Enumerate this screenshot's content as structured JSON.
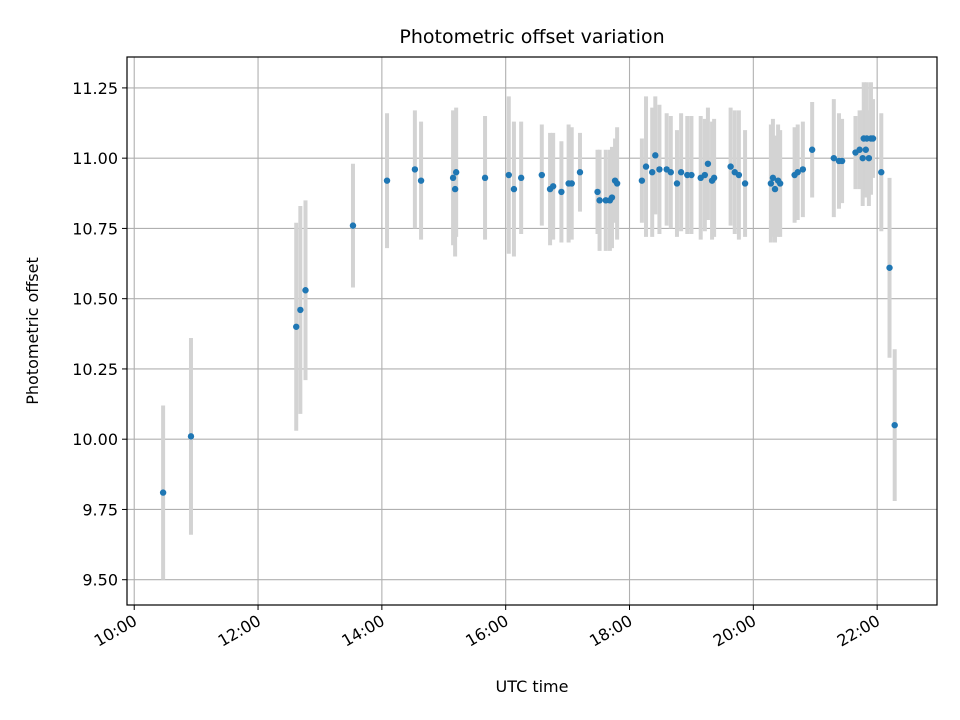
{
  "chart_data": {
    "type": "scatter",
    "title": "Photometric offset variation",
    "xlabel": "UTC time",
    "ylabel": "Photometric offset",
    "x_ticks": [
      "10:00",
      "12:00",
      "14:00",
      "16:00",
      "18:00",
      "20:00",
      "22:00"
    ],
    "y_ticks": [
      "9.50",
      "9.75",
      "10.00",
      "10.25",
      "10.50",
      "10.75",
      "11.00",
      "11.25"
    ],
    "xlim": [
      "09:53",
      "22:58"
    ],
    "ylim": [
      9.41,
      11.36
    ],
    "grid": true,
    "point_color": "#1f77b4",
    "errorbar_color": "#d3d3d3",
    "series": [
      {
        "x": [
          "10:28",
          "10:55",
          "12:37",
          "12:41",
          "12:46",
          "13:32",
          "14:05",
          "14:32",
          "14:38",
          "15:09",
          "15:11",
          "15:12",
          "15:40",
          "16:03",
          "16:08",
          "16:15",
          "16:35",
          "16:43",
          "16:46",
          "16:54",
          "17:01",
          "17:04",
          "17:12",
          "17:29",
          "17:31",
          "17:37",
          "17:41",
          "17:43",
          "17:46",
          "17:48",
          "18:12",
          "18:16",
          "18:22",
          "18:25",
          "18:29",
          "18:36",
          "18:40",
          "18:46",
          "18:50",
          "18:56",
          "19:00",
          "19:09",
          "19:13",
          "19:16",
          "19:20",
          "19:22",
          "19:38",
          "19:42",
          "19:46",
          "19:52",
          "20:17",
          "20:19",
          "20:21",
          "20:24",
          "20:26",
          "20:40",
          "20:43",
          "20:48",
          "20:57",
          "21:18",
          "21:23",
          "21:26",
          "21:39",
          "21:43",
          "21:46",
          "21:47",
          "21:49",
          "21:50",
          "21:52",
          "21:54",
          "21:56",
          "22:04",
          "22:12",
          "22:17"
        ],
        "y": [
          9.81,
          10.01,
          10.4,
          10.46,
          10.53,
          10.76,
          10.92,
          10.96,
          10.92,
          10.93,
          10.89,
          10.95,
          10.93,
          10.94,
          10.89,
          10.93,
          10.94,
          10.89,
          10.9,
          10.88,
          10.91,
          10.91,
          10.95,
          10.88,
          10.85,
          10.85,
          10.85,
          10.86,
          10.92,
          10.91,
          10.92,
          10.97,
          10.95,
          11.01,
          10.96,
          10.96,
          10.95,
          10.91,
          10.95,
          10.94,
          10.94,
          10.93,
          10.94,
          10.98,
          10.92,
          10.93,
          10.97,
          10.95,
          10.94,
          10.91,
          10.91,
          10.93,
          10.89,
          10.92,
          10.91,
          10.94,
          10.95,
          10.96,
          11.03,
          11.0,
          10.99,
          10.99,
          11.02,
          11.03,
          11.0,
          11.07,
          11.03,
          11.07,
          11.0,
          11.07,
          11.07,
          10.95,
          10.61,
          10.05
        ],
        "err": [
          0.31,
          0.35,
          0.37,
          0.37,
          0.32,
          0.22,
          0.24,
          0.21,
          0.21,
          0.24,
          0.24,
          0.23,
          0.22,
          0.28,
          0.24,
          0.2,
          0.18,
          0.2,
          0.19,
          0.18,
          0.21,
          0.2,
          0.14,
          0.15,
          0.18,
          0.18,
          0.18,
          0.18,
          0.15,
          0.2,
          0.15,
          0.25,
          0.23,
          0.21,
          0.23,
          0.2,
          0.2,
          0.19,
          0.21,
          0.21,
          0.21,
          0.22,
          0.2,
          0.2,
          0.21,
          0.21,
          0.21,
          0.22,
          0.23,
          0.19,
          0.21,
          0.21,
          0.19,
          0.2,
          0.19,
          0.17,
          0.17,
          0.17,
          0.17,
          0.21,
          0.17,
          0.15,
          0.13,
          0.14,
          0.17,
          0.2,
          0.17,
          0.2,
          0.17,
          0.2,
          0.14,
          0.21,
          0.32,
          0.27
        ]
      }
    ]
  }
}
